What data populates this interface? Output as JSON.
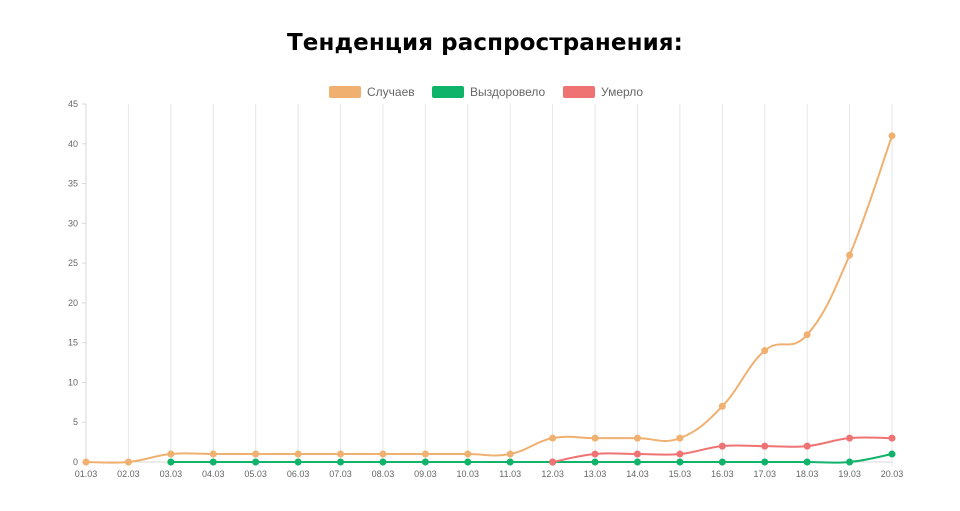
{
  "chart_data": {
    "type": "line",
    "title": "Тенденция распространения:",
    "categories": [
      "01.03",
      "02.03",
      "03.03",
      "04.03",
      "05.03",
      "06.03",
      "07.03",
      "08.03",
      "09.03",
      "10.03",
      "11.03",
      "12.03",
      "13.03",
      "14.03",
      "15.03",
      "16.03",
      "17.03",
      "18.03",
      "19.03",
      "20.03"
    ],
    "ylim": [
      0,
      45
    ],
    "yticks": [
      "0",
      "5",
      "10",
      "15",
      "20",
      "25",
      "30",
      "35",
      "40",
      "45"
    ],
    "grid": true,
    "legend_position": "top-center",
    "series": [
      {
        "name": "Случаев",
        "color": "#f0b070",
        "values": [
          0,
          0,
          1,
          1,
          1,
          1,
          1,
          1,
          1,
          1,
          1,
          3,
          3,
          3,
          3,
          7,
          14,
          16,
          26,
          41
        ]
      },
      {
        "name": "Выздоровело",
        "color": "#10b36a",
        "values": [
          null,
          null,
          0,
          0,
          0,
          0,
          0,
          0,
          0,
          0,
          0,
          0,
          0,
          0,
          0,
          0,
          0,
          0,
          0,
          1
        ]
      },
      {
        "name": "Умерло",
        "color": "#ef7373",
        "values": [
          null,
          null,
          null,
          null,
          null,
          null,
          null,
          null,
          null,
          null,
          null,
          0,
          1,
          1,
          1,
          2,
          2,
          2,
          3,
          3
        ]
      }
    ]
  }
}
